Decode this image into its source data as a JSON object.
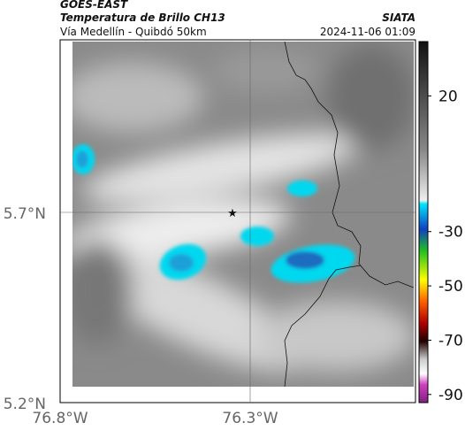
{
  "header": {
    "title": "GOES-EAST",
    "subtitle": "Temperatura de Brillo CH13",
    "location": "Vía Medellín - Quibdó 50km",
    "org": "SIATA",
    "datetime": "2024-11-06 01:09"
  },
  "map": {
    "lat_ticks": [
      "5.7°N",
      "5.2°N"
    ],
    "lon_ticks": [
      "76.8°W",
      "76.3°W"
    ]
  },
  "colorbar": {
    "clim": [
      -93,
      40
    ],
    "ticks": [
      20,
      -30,
      -50,
      -70,
      -90
    ]
  }
}
